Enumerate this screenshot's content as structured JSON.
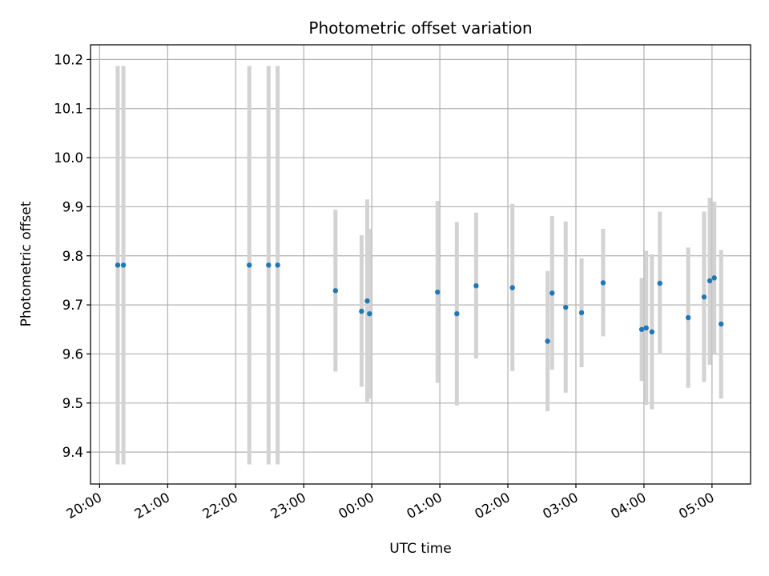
{
  "chart_data": {
    "type": "scatter",
    "title": "Photometric offset variation",
    "xlabel": "UTC time",
    "ylabel": "Photometric offset",
    "grid": true,
    "xlim": [
      "19:52",
      "05:34"
    ],
    "ylim": [
      9.335,
      10.23
    ],
    "xticks": [
      "20:00",
      "21:00",
      "22:00",
      "23:00",
      "00:00",
      "01:00",
      "02:00",
      "03:00",
      "04:00",
      "05:00"
    ],
    "yticks": [
      "9.4",
      "9.5",
      "9.6",
      "9.7",
      "9.8",
      "9.9",
      "10.0",
      "10.1",
      "10.2"
    ],
    "colors": {
      "point": "#1f77b4",
      "errorbar": "#d3d3d3",
      "grid": "#b0b0b0"
    },
    "points": [
      {
        "x": "20:16",
        "y": 9.781,
        "ylow": 9.375,
        "yhigh": 10.187
      },
      {
        "x": "20:21",
        "y": 9.781,
        "ylow": 9.375,
        "yhigh": 10.187
      },
      {
        "x": "22:12",
        "y": 9.781,
        "ylow": 9.375,
        "yhigh": 10.187
      },
      {
        "x": "22:29",
        "y": 9.781,
        "ylow": 9.375,
        "yhigh": 10.187
      },
      {
        "x": "22:37",
        "y": 9.781,
        "ylow": 9.375,
        "yhigh": 10.187
      },
      {
        "x": "23:28",
        "y": 9.729,
        "ylow": 9.564,
        "yhigh": 9.894
      },
      {
        "x": "23:51",
        "y": 9.687,
        "ylow": 9.533,
        "yhigh": 9.842
      },
      {
        "x": "23:56",
        "y": 9.708,
        "ylow": 9.502,
        "yhigh": 9.915
      },
      {
        "x": "23:58",
        "y": 9.682,
        "ylow": 9.509,
        "yhigh": 9.855
      },
      {
        "x": "00:58",
        "y": 9.726,
        "ylow": 9.541,
        "yhigh": 9.912
      },
      {
        "x": "01:15",
        "y": 9.682,
        "ylow": 9.495,
        "yhigh": 9.869
      },
      {
        "x": "01:32",
        "y": 9.739,
        "ylow": 9.591,
        "yhigh": 9.888
      },
      {
        "x": "02:04",
        "y": 9.735,
        "ylow": 9.565,
        "yhigh": 9.906
      },
      {
        "x": "02:35",
        "y": 9.626,
        "ylow": 9.483,
        "yhigh": 9.769
      },
      {
        "x": "02:39",
        "y": 9.724,
        "ylow": 9.568,
        "yhigh": 9.881
      },
      {
        "x": "02:51",
        "y": 9.695,
        "ylow": 9.521,
        "yhigh": 9.87
      },
      {
        "x": "03:05",
        "y": 9.684,
        "ylow": 9.573,
        "yhigh": 9.795
      },
      {
        "x": "03:24",
        "y": 9.745,
        "ylow": 9.636,
        "yhigh": 9.855
      },
      {
        "x": "03:58",
        "y": 9.65,
        "ylow": 9.545,
        "yhigh": 9.755
      },
      {
        "x": "04:02",
        "y": 9.653,
        "ylow": 9.496,
        "yhigh": 9.81
      },
      {
        "x": "04:07",
        "y": 9.645,
        "ylow": 9.487,
        "yhigh": 9.803
      },
      {
        "x": "04:14",
        "y": 9.744,
        "ylow": 9.599,
        "yhigh": 9.89
      },
      {
        "x": "04:39",
        "y": 9.674,
        "ylow": 9.531,
        "yhigh": 9.817
      },
      {
        "x": "04:53",
        "y": 9.716,
        "ylow": 9.543,
        "yhigh": 9.89
      },
      {
        "x": "04:58",
        "y": 9.749,
        "ylow": 9.578,
        "yhigh": 9.918
      },
      {
        "x": "05:02",
        "y": 9.755,
        "ylow": 9.601,
        "yhigh": 9.91
      },
      {
        "x": "05:08",
        "y": 9.661,
        "ylow": 9.509,
        "yhigh": 9.812
      }
    ]
  }
}
